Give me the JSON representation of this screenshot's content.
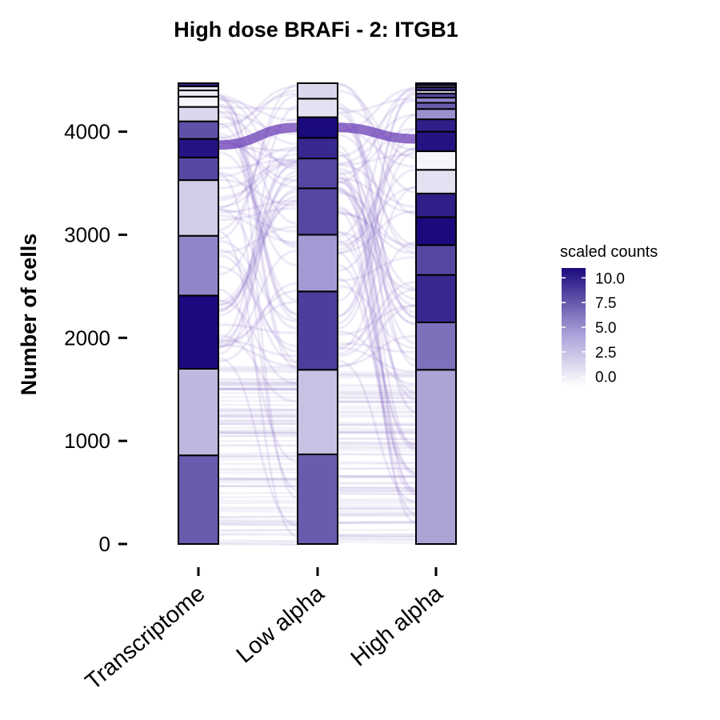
{
  "chart_data": {
    "type": "alluvial",
    "title": "High dose BRAFi - 2: ITGB1",
    "ylabel": "Number of cells",
    "xlabel": "",
    "ylim": [
      0,
      4470
    ],
    "yticks": [
      0,
      1000,
      2000,
      3000,
      4000
    ],
    "axes": [
      "Transcriptome",
      "Low alpha",
      "High alpha"
    ],
    "strata": [
      {
        "axis": "Transcriptome",
        "segments": [
          {
            "from": 0,
            "to": 860,
            "value": 7.0
          },
          {
            "from": 860,
            "to": 1700,
            "value": 2.5
          },
          {
            "from": 1700,
            "to": 2410,
            "value": 11.0
          },
          {
            "from": 2410,
            "to": 2990,
            "value": 5.0
          },
          {
            "from": 2990,
            "to": 3530,
            "value": 1.5
          },
          {
            "from": 3530,
            "to": 3750,
            "value": 8.0
          },
          {
            "from": 3750,
            "to": 3930,
            "value": 10.5
          },
          {
            "from": 3930,
            "to": 4100,
            "value": 7.5
          },
          {
            "from": 4100,
            "to": 4240,
            "value": 1.0
          },
          {
            "from": 4240,
            "to": 4340,
            "value": -0.5
          },
          {
            "from": 4340,
            "to": 4400,
            "value": 0.0
          },
          {
            "from": 4400,
            "to": 4440,
            "value": 0.5
          },
          {
            "from": 4440,
            "to": 4470,
            "value": 10.0
          }
        ]
      },
      {
        "axis": "Low alpha",
        "segments": [
          {
            "from": 0,
            "to": 870,
            "value": 7.0
          },
          {
            "from": 870,
            "to": 1690,
            "value": 2.0
          },
          {
            "from": 1690,
            "to": 2450,
            "value": 8.5
          },
          {
            "from": 2450,
            "to": 3000,
            "value": 4.0
          },
          {
            "from": 3000,
            "to": 3450,
            "value": 8.0
          },
          {
            "from": 3450,
            "to": 3740,
            "value": 8.0
          },
          {
            "from": 3740,
            "to": 3940,
            "value": 9.5
          },
          {
            "from": 3940,
            "to": 4140,
            "value": 11.0
          },
          {
            "from": 4140,
            "to": 4320,
            "value": 0.5
          },
          {
            "from": 4320,
            "to": 4470,
            "value": 1.0
          }
        ]
      },
      {
        "axis": "High alpha",
        "segments": [
          {
            "from": 0,
            "to": 1690,
            "value": 3.5
          },
          {
            "from": 1690,
            "to": 2150,
            "value": 6.0
          },
          {
            "from": 2150,
            "to": 2610,
            "value": 9.5
          },
          {
            "from": 2610,
            "to": 2900,
            "value": 8.0
          },
          {
            "from": 2900,
            "to": 3170,
            "value": 11.0
          },
          {
            "from": 3170,
            "to": 3400,
            "value": 10.0
          },
          {
            "from": 3400,
            "to": 3630,
            "value": 0.5
          },
          {
            "from": 3630,
            "to": 3810,
            "value": -0.5
          },
          {
            "from": 3810,
            "to": 4000,
            "value": 10.5
          },
          {
            "from": 4000,
            "to": 4120,
            "value": 10.0
          },
          {
            "from": 4120,
            "to": 4220,
            "value": 4.5
          },
          {
            "from": 4220,
            "to": 4280,
            "value": 7.0
          },
          {
            "from": 4280,
            "to": 4330,
            "value": 5.0
          },
          {
            "from": 4330,
            "to": 4370,
            "value": 8.0
          },
          {
            "from": 4370,
            "to": 4400,
            "value": 1.0
          },
          {
            "from": 4400,
            "to": 4430,
            "value": 9.0
          },
          {
            "from": 4430,
            "to": 4450,
            "value": 2.0
          },
          {
            "from": 4450,
            "to": 4470,
            "value": 10.5
          }
        ]
      }
    ],
    "dominant_flow": {
      "Transcriptome": 3870,
      "Low alpha": 4040,
      "High alpha": 3930
    },
    "legend": {
      "title": "scaled counts",
      "ticks": [
        "10.0",
        "7.5",
        "5.0",
        "2.5",
        "0.0"
      ],
      "tick_values": [
        10.0,
        7.5,
        5.0,
        2.5,
        0.0
      ],
      "range": [
        -1,
        11
      ],
      "placement": "right"
    },
    "colors": {
      "low": "#ffffff",
      "mid": "#9b92cf",
      "high": "#1a0a7d",
      "flow": "#7a5fbf",
      "dominant_flow": "#6a3fb5"
    },
    "grid": false
  }
}
